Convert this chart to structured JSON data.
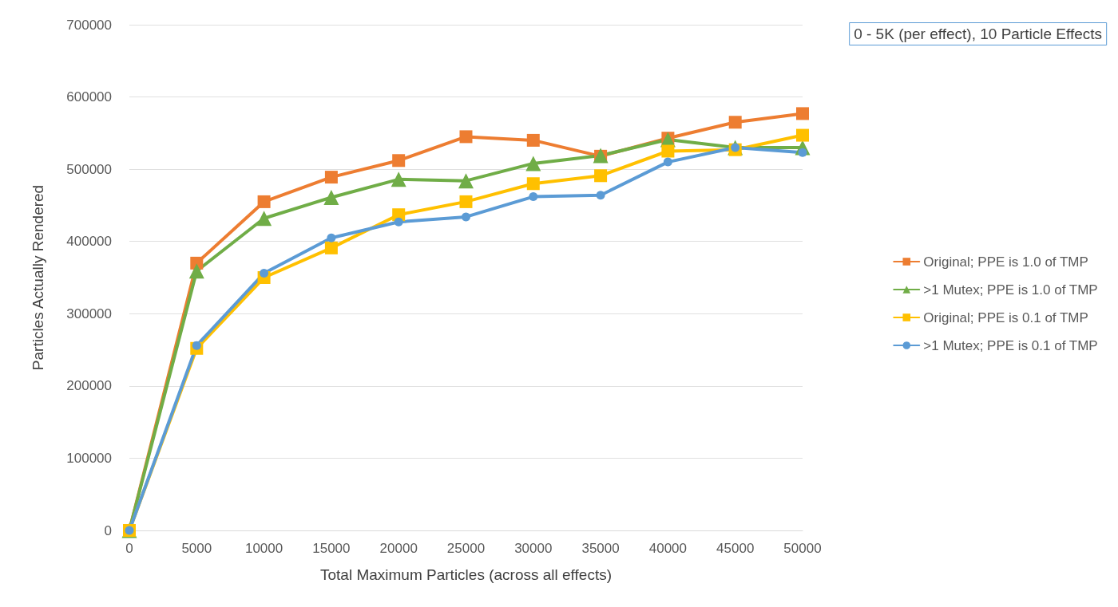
{
  "chart_data": {
    "type": "line",
    "title": "0 - 5K (per effect), 10 Particle Effects",
    "xlabel": "Total Maximum Particles (across all effects)",
    "ylabel": "Particles Actually Rendered",
    "x": [
      0,
      5000,
      10000,
      15000,
      20000,
      25000,
      30000,
      35000,
      40000,
      45000,
      50000
    ],
    "xlim": [
      0,
      50000
    ],
    "xticks": [
      0,
      5000,
      10000,
      15000,
      20000,
      25000,
      30000,
      35000,
      40000,
      45000,
      50000
    ],
    "ylim": [
      0,
      700000
    ],
    "yticks": [
      0,
      100000,
      200000,
      300000,
      400000,
      500000,
      600000,
      700000
    ],
    "grid": "y",
    "legend": "right",
    "line_style": "solid",
    "series": [
      {
        "name": "Original; PPE is 1.0 of TMP",
        "color": "#ed7d31",
        "marker": "square",
        "values": [
          0,
          370000,
          455000,
          489000,
          512000,
          545000,
          540000,
          518000,
          543000,
          565000,
          577000
        ]
      },
      {
        "name": ">1 Mutex; PPE is 1.0 of TMP",
        "color": "#70ad47",
        "marker": "triangle",
        "values": [
          0,
          359000,
          432000,
          461000,
          486000,
          484000,
          508000,
          519000,
          541000,
          530000,
          530000
        ]
      },
      {
        "name": "Original; PPE is 0.1 of TMP",
        "color": "#ffc000",
        "marker": "square",
        "values": [
          0,
          252000,
          350000,
          391000,
          437000,
          455000,
          480000,
          491000,
          525000,
          527000,
          547000
        ]
      },
      {
        "name": ">1 Mutex; PPE is 0.1 of TMP",
        "color": "#5b9bd5",
        "marker": "circle",
        "values": [
          0,
          256000,
          356000,
          405000,
          427000,
          434000,
          462000,
          464000,
          510000,
          530000,
          523000
        ]
      }
    ]
  }
}
